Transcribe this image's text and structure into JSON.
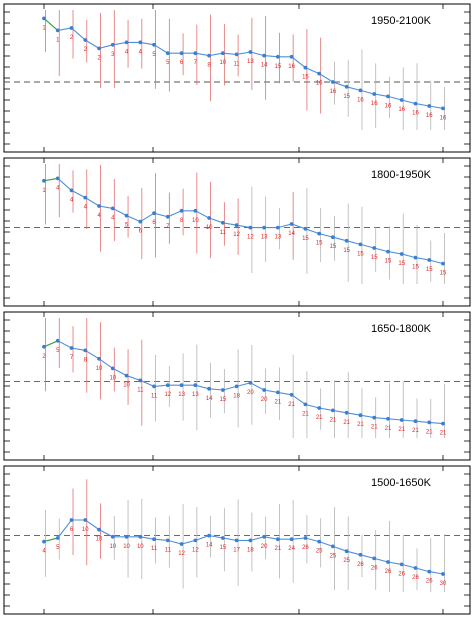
{
  "chart_data": [
    {
      "type": "line",
      "title": "1950-2100K",
      "ylim": [
        0,
        1
      ],
      "reference_y": 0.4,
      "points": [
        {
          "x": 1,
          "y": 0.93,
          "label": "1"
        },
        {
          "x": 2,
          "y": 0.83,
          "label": "1"
        },
        {
          "x": 3,
          "y": 0.85,
          "label": "2"
        },
        {
          "x": 4,
          "y": 0.75,
          "label": "2"
        },
        {
          "x": 5,
          "y": 0.68,
          "label": "2"
        },
        {
          "x": 6,
          "y": 0.71,
          "label": "3"
        },
        {
          "x": 7,
          "y": 0.73,
          "label": "4"
        },
        {
          "x": 8,
          "y": 0.73,
          "label": "4"
        },
        {
          "x": 9,
          "y": 0.71,
          "label": "5"
        },
        {
          "x": 10,
          "y": 0.64,
          "label": "5"
        },
        {
          "x": 11,
          "y": 0.64,
          "label": "6"
        },
        {
          "x": 12,
          "y": 0.64,
          "label": "7"
        },
        {
          "x": 13,
          "y": 0.62,
          "label": "8"
        },
        {
          "x": 14,
          "y": 0.64,
          "label": "10"
        },
        {
          "x": 15,
          "y": 0.63,
          "label": "11"
        },
        {
          "x": 16,
          "y": 0.65,
          "label": "13"
        },
        {
          "x": 17,
          "y": 0.62,
          "label": "14"
        },
        {
          "x": 18,
          "y": 0.61,
          "label": "15"
        },
        {
          "x": 19,
          "y": 0.61,
          "label": "16"
        },
        {
          "x": 20,
          "y": 0.52,
          "label": "15"
        },
        {
          "x": 21,
          "y": 0.47,
          "label": "16"
        },
        {
          "x": 22,
          "y": 0.4,
          "label": "16"
        },
        {
          "x": 23,
          "y": 0.36,
          "label": "15"
        },
        {
          "x": 24,
          "y": 0.33,
          "label": "16"
        },
        {
          "x": 25,
          "y": 0.3,
          "label": "16"
        },
        {
          "x": 26,
          "y": 0.28,
          "label": "16"
        },
        {
          "x": 27,
          "y": 0.25,
          "label": "16"
        },
        {
          "x": 28,
          "y": 0.22,
          "label": "16"
        },
        {
          "x": 29,
          "y": 0.2,
          "label": "16"
        },
        {
          "x": 30,
          "y": 0.18,
          "label": "16"
        }
      ]
    },
    {
      "type": "line",
      "title": "1800-1950K",
      "ylim": [
        0,
        1
      ],
      "reference_y": 0.47,
      "points": [
        {
          "x": 1,
          "y": 0.86,
          "label": "1"
        },
        {
          "x": 2,
          "y": 0.88,
          "label": "4"
        },
        {
          "x": 3,
          "y": 0.78,
          "label": "4"
        },
        {
          "x": 4,
          "y": 0.72,
          "label": "4"
        },
        {
          "x": 5,
          "y": 0.65,
          "label": "4"
        },
        {
          "x": 6,
          "y": 0.63,
          "label": "4"
        },
        {
          "x": 7,
          "y": 0.57,
          "label": "5"
        },
        {
          "x": 8,
          "y": 0.52,
          "label": "6"
        },
        {
          "x": 9,
          "y": 0.59,
          "label": "6"
        },
        {
          "x": 10,
          "y": 0.56,
          "label": "7"
        },
        {
          "x": 11,
          "y": 0.61,
          "label": "8"
        },
        {
          "x": 12,
          "y": 0.61,
          "label": "10"
        },
        {
          "x": 13,
          "y": 0.55,
          "label": "10"
        },
        {
          "x": 14,
          "y": 0.51,
          "label": "11"
        },
        {
          "x": 15,
          "y": 0.49,
          "label": "12"
        },
        {
          "x": 16,
          "y": 0.47,
          "label": "12"
        },
        {
          "x": 17,
          "y": 0.47,
          "label": "13"
        },
        {
          "x": 18,
          "y": 0.47,
          "label": "13"
        },
        {
          "x": 19,
          "y": 0.5,
          "label": "14"
        },
        {
          "x": 20,
          "y": 0.46,
          "label": "15"
        },
        {
          "x": 21,
          "y": 0.42,
          "label": "15"
        },
        {
          "x": 22,
          "y": 0.39,
          "label": "15"
        },
        {
          "x": 23,
          "y": 0.36,
          "label": "15"
        },
        {
          "x": 24,
          "y": 0.33,
          "label": "15"
        },
        {
          "x": 25,
          "y": 0.3,
          "label": "15"
        },
        {
          "x": 26,
          "y": 0.27,
          "label": "15"
        },
        {
          "x": 27,
          "y": 0.25,
          "label": "15"
        },
        {
          "x": 28,
          "y": 0.22,
          "label": "15"
        },
        {
          "x": 29,
          "y": 0.2,
          "label": "15"
        },
        {
          "x": 30,
          "y": 0.17,
          "label": "15"
        }
      ]
    },
    {
      "type": "line",
      "title": "1650-1800K",
      "ylim": [
        0,
        1
      ],
      "reference_y": 0.47,
      "points": [
        {
          "x": 1,
          "y": 0.76,
          "label": "2"
        },
        {
          "x": 2,
          "y": 0.81,
          "label": "5"
        },
        {
          "x": 3,
          "y": 0.75,
          "label": "7"
        },
        {
          "x": 4,
          "y": 0.73,
          "label": "8"
        },
        {
          "x": 5,
          "y": 0.66,
          "label": "10"
        },
        {
          "x": 6,
          "y": 0.58,
          "label": "10"
        },
        {
          "x": 7,
          "y": 0.52,
          "label": "10"
        },
        {
          "x": 8,
          "y": 0.48,
          "label": "11"
        },
        {
          "x": 9,
          "y": 0.43,
          "label": "11"
        },
        {
          "x": 10,
          "y": 0.44,
          "label": "12"
        },
        {
          "x": 11,
          "y": 0.44,
          "label": "13"
        },
        {
          "x": 12,
          "y": 0.44,
          "label": "13"
        },
        {
          "x": 13,
          "y": 0.41,
          "label": "14"
        },
        {
          "x": 14,
          "y": 0.4,
          "label": "15"
        },
        {
          "x": 15,
          "y": 0.43,
          "label": "18"
        },
        {
          "x": 16,
          "y": 0.46,
          "label": "20"
        },
        {
          "x": 17,
          "y": 0.4,
          "label": "20"
        },
        {
          "x": 18,
          "y": 0.38,
          "label": "21"
        },
        {
          "x": 19,
          "y": 0.36,
          "label": "21"
        },
        {
          "x": 20,
          "y": 0.28,
          "label": "21"
        },
        {
          "x": 21,
          "y": 0.25,
          "label": "21"
        },
        {
          "x": 22,
          "y": 0.23,
          "label": "21"
        },
        {
          "x": 23,
          "y": 0.21,
          "label": "21"
        },
        {
          "x": 24,
          "y": 0.19,
          "label": "21"
        },
        {
          "x": 25,
          "y": 0.17,
          "label": "21"
        },
        {
          "x": 26,
          "y": 0.16,
          "label": "21"
        },
        {
          "x": 27,
          "y": 0.15,
          "label": "21"
        },
        {
          "x": 28,
          "y": 0.14,
          "label": "21"
        },
        {
          "x": 29,
          "y": 0.13,
          "label": "21"
        },
        {
          "x": 30,
          "y": 0.12,
          "label": "21"
        }
      ]
    },
    {
      "type": "line",
      "title": "1500-1650K",
      "ylim": [
        0,
        1
      ],
      "reference_y": 0.47,
      "points": [
        {
          "x": 1,
          "y": 0.42,
          "label": "4"
        },
        {
          "x": 2,
          "y": 0.45,
          "label": "5"
        },
        {
          "x": 3,
          "y": 0.6,
          "label": "6"
        },
        {
          "x": 4,
          "y": 0.6,
          "label": "10"
        },
        {
          "x": 5,
          "y": 0.52,
          "label": "10"
        },
        {
          "x": 6,
          "y": 0.46,
          "label": "10"
        },
        {
          "x": 7,
          "y": 0.46,
          "label": "10"
        },
        {
          "x": 8,
          "y": 0.46,
          "label": "10"
        },
        {
          "x": 9,
          "y": 0.44,
          "label": "11"
        },
        {
          "x": 10,
          "y": 0.43,
          "label": "11"
        },
        {
          "x": 11,
          "y": 0.4,
          "label": "12"
        },
        {
          "x": 12,
          "y": 0.43,
          "label": "12"
        },
        {
          "x": 13,
          "y": 0.47,
          "label": "14"
        },
        {
          "x": 14,
          "y": 0.45,
          "label": "15"
        },
        {
          "x": 15,
          "y": 0.43,
          "label": "17"
        },
        {
          "x": 16,
          "y": 0.43,
          "label": "18"
        },
        {
          "x": 17,
          "y": 0.46,
          "label": "20"
        },
        {
          "x": 18,
          "y": 0.44,
          "label": "21"
        },
        {
          "x": 19,
          "y": 0.44,
          "label": "24"
        },
        {
          "x": 20,
          "y": 0.45,
          "label": "26"
        },
        {
          "x": 21,
          "y": 0.42,
          "label": "25"
        },
        {
          "x": 22,
          "y": 0.38,
          "label": "25"
        },
        {
          "x": 23,
          "y": 0.34,
          "label": "25"
        },
        {
          "x": 24,
          "y": 0.31,
          "label": "26"
        },
        {
          "x": 25,
          "y": 0.28,
          "label": "26"
        },
        {
          "x": 26,
          "y": 0.25,
          "label": "26"
        },
        {
          "x": 27,
          "y": 0.23,
          "label": "26"
        },
        {
          "x": 28,
          "y": 0.2,
          "label": "26"
        },
        {
          "x": 29,
          "y": 0.17,
          "label": "26"
        },
        {
          "x": 30,
          "y": 0.15,
          "label": "30"
        }
      ]
    }
  ],
  "colors": {
    "line": "#4f8fd8",
    "marker": "#3a7fd0",
    "first_segment": "#3aa046",
    "label": "#e0282a",
    "red_bar": "#e07070",
    "gray_bar": "#b4b4b4",
    "reference": "#555555",
    "frame": "#000000"
  }
}
